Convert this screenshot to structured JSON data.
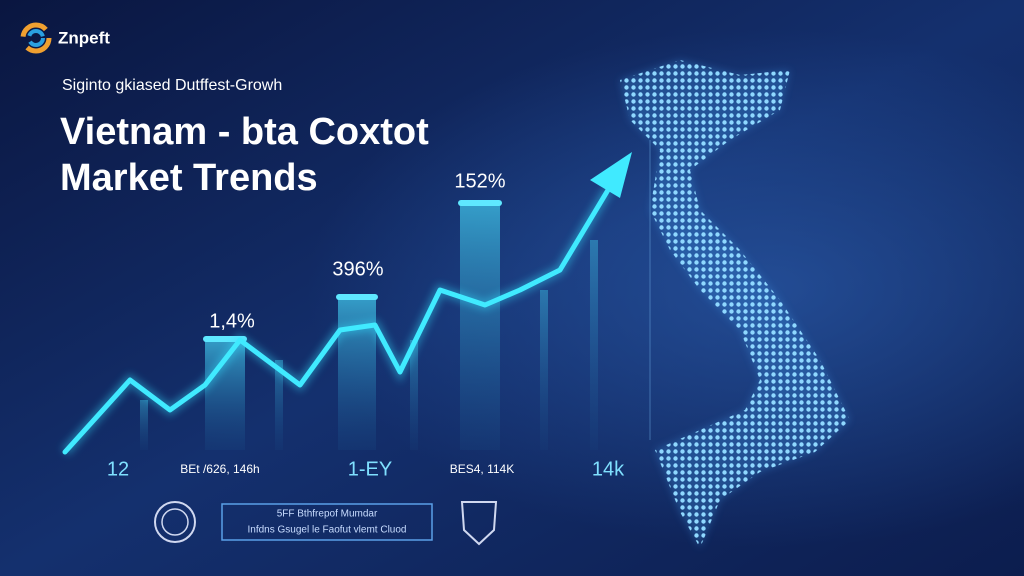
{
  "header": {
    "brand": "Znpeft",
    "subtitle": "Siginto gkiased Dutffest-Growh",
    "title_line1": "Vietnam - bta Coxtot",
    "title_line2": "Market Trends"
  },
  "bar_labels": [
    "1,4%",
    "396%",
    "152%"
  ],
  "axis_labels": [
    "12",
    "BEt /626, 146h",
    "1-EY",
    "BES4, 114K",
    "14k"
  ],
  "footer_box": {
    "line1": "5FF Bthfrepof Mumdar",
    "line2": "Infdns Gsugel le Faofut vlemt Cluod"
  }
}
